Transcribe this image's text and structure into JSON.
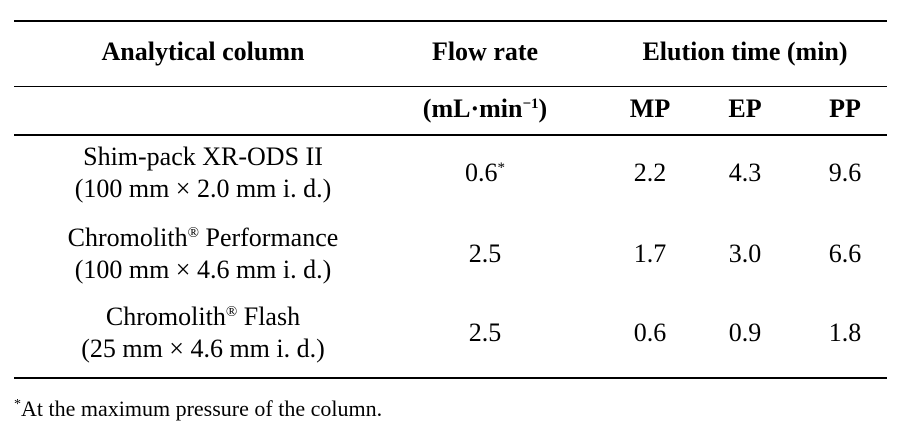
{
  "table": {
    "header": {
      "col1": "Analytical column",
      "col2": "Flow rate",
      "col3": "Elution time (min)",
      "units_prefix": "(mL·min",
      "units_exp": "−1",
      "units_suffix": ")",
      "mp": "MP",
      "ep": "EP",
      "pp": "PP"
    },
    "rows": [
      {
        "col_line1": "Shim-pack XR-ODS II",
        "col_line2": "(100 mm × 2.0 mm i. d.)",
        "flow": "0.6",
        "flow_mark": "*",
        "mp": "2.2",
        "ep": "4.3",
        "pp": "9.6"
      },
      {
        "col_line1_a": "Chromolith",
        "col_line1_reg": "®",
        "col_line1_b": " Performance",
        "col_line2": "(100 mm × 4.6 mm i. d.)",
        "flow": "2.5",
        "mp": "1.7",
        "ep": "3.0",
        "pp": "6.6"
      },
      {
        "col_line1_a": "Chromolith",
        "col_line1_reg": "®",
        "col_line1_b": " Flash",
        "col_line2": "(25 mm × 4.6 mm i. d.)",
        "flow": "2.5",
        "mp": "0.6",
        "ep": "0.9",
        "pp": "1.8"
      }
    ],
    "footnote_mark": "*",
    "footnote_text": "At the maximum pressure of the column."
  }
}
